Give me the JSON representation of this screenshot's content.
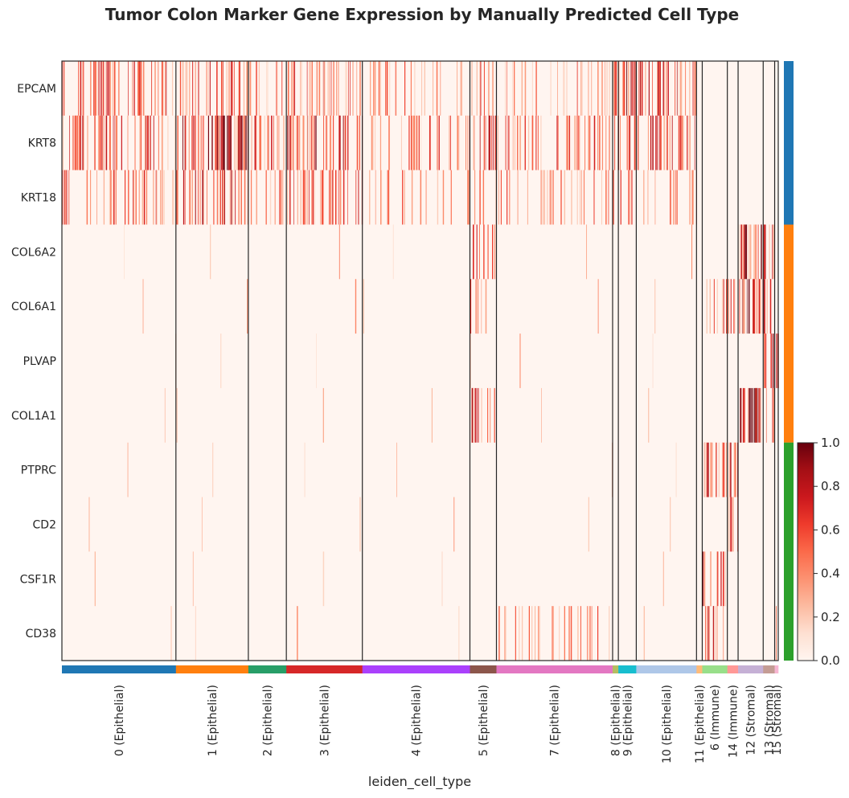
{
  "chart_data": {
    "type": "heatmap",
    "title": "Tumor Colon Marker Gene Expression by Manually Predicted Cell Type",
    "xlabel": "leiden_cell_type",
    "genes": [
      "EPCAM",
      "KRT8",
      "KRT18",
      "COL6A2",
      "COL6A1",
      "PLVAP",
      "COL1A1",
      "PTPRC",
      "CD2",
      "CSF1R",
      "CD38"
    ],
    "gene_groups": [
      {
        "genes": [
          "EPCAM",
          "KRT8",
          "KRT18"
        ],
        "color": "#1f77b4"
      },
      {
        "genes": [
          "COL6A2",
          "COL6A1",
          "PLVAP",
          "COL1A1"
        ],
        "color": "#ff7f0e"
      },
      {
        "genes": [
          "PTPRC",
          "CD2",
          "CSF1R",
          "CD38"
        ],
        "color": "#2ca02c"
      }
    ],
    "groups": [
      {
        "label": "0 (Epithelial)",
        "color": "#1f77b4",
        "width": 0.159
      },
      {
        "label": "1 (Epithelial)",
        "color": "#ff7f0e",
        "width": 0.101
      },
      {
        "label": "2 (Epithelial)",
        "color": "#279e68",
        "width": 0.053
      },
      {
        "label": "3 (Epithelial)",
        "color": "#d62728",
        "width": 0.106
      },
      {
        "label": "4 (Epithelial)",
        "color": "#aa40fc",
        "width": 0.15
      },
      {
        "label": "5 (Epithelial)",
        "color": "#8c564b",
        "width": 0.037
      },
      {
        "label": "7 (Epithelial)",
        "color": "#e377c2",
        "width": 0.162
      },
      {
        "label": "8 (Epithelial)",
        "color": "#b5bd61",
        "width": 0.008
      },
      {
        "label": "9 (Epithelial)",
        "color": "#17becf",
        "width": 0.025
      },
      {
        "label": "10 (Epithelial)",
        "color": "#aec7e8",
        "width": 0.084
      },
      {
        "label": "11 (Epithelial)",
        "color": "#ffbb78",
        "width": 0.008
      },
      {
        "label": "6 (Immune)",
        "color": "#98df8a",
        "width": 0.035
      },
      {
        "label": "14 (Immune)",
        "color": "#ff9896",
        "width": 0.015
      },
      {
        "label": "12 (Stromal)",
        "color": "#c5b0d5",
        "width": 0.035
      },
      {
        "label": "13 (Stromal)",
        "color": "#c49c94",
        "width": 0.016
      },
      {
        "label": "15 (Stromal)",
        "color": "#f7b6d2",
        "width": 0.005
      }
    ],
    "high_expression": [
      {
        "group": "0 (Epithelial)",
        "genes": {
          "EPCAM": 0.35,
          "KRT8": 0.45,
          "KRT18": 0.3
        }
      },
      {
        "group": "1 (Epithelial)",
        "genes": {
          "EPCAM": 0.35,
          "KRT8": 0.7,
          "KRT18": 0.45
        }
      },
      {
        "group": "2 (Epithelial)",
        "genes": {
          "EPCAM": 0.2,
          "KRT8": 0.35,
          "KRT18": 0.2
        }
      },
      {
        "group": "3 (Epithelial)",
        "genes": {
          "EPCAM": 0.4,
          "KRT8": 0.6,
          "KRT18": 0.4
        }
      },
      {
        "group": "4 (Epithelial)",
        "genes": {
          "EPCAM": 0.2,
          "KRT8": 0.25,
          "KRT18": 0.15
        }
      },
      {
        "group": "5 (Epithelial)",
        "genes": {
          "EPCAM": 0.35,
          "KRT8": 0.4,
          "KRT18": 0.2,
          "COL6A2": 0.35,
          "COL6A1": 0.25,
          "COL1A1": 0.45
        }
      },
      {
        "group": "7 (Epithelial)",
        "genes": {
          "EPCAM": 0.2,
          "KRT8": 0.3,
          "KRT18": 0.2,
          "CD38": 0.2
        }
      },
      {
        "group": "8 (Epithelial)",
        "genes": {
          "EPCAM": 0.7,
          "KRT8": 0.45,
          "KRT18": 0.3
        }
      },
      {
        "group": "9 (Epithelial)",
        "genes": {
          "EPCAM": 0.7,
          "KRT8": 0.45,
          "KRT18": 0.25
        }
      },
      {
        "group": "10 (Epithelial)",
        "genes": {
          "EPCAM": 0.45,
          "KRT8": 0.45,
          "KRT18": 0.2
        }
      },
      {
        "group": "6 (Immune)",
        "genes": {
          "PTPRC": 0.7,
          "COL6A1": 0.35,
          "CSF1R": 0.5,
          "CD38": 0.4
        }
      },
      {
        "group": "14 (Immune)",
        "genes": {
          "PTPRC": 0.7,
          "CD2": 0.5,
          "COL6A1": 0.3
        }
      },
      {
        "group": "12 (Stromal)",
        "genes": {
          "COL6A2": 0.75,
          "COL6A1": 0.75,
          "COL1A1": 0.85
        }
      },
      {
        "group": "13 (Stromal)",
        "genes": {
          "COL6A2": 0.5,
          "COL6A1": 0.5,
          "PLVAP": 0.6,
          "COL1A1": 0.3
        }
      },
      {
        "group": "15 (Stromal)",
        "genes": {
          "PLVAP": 0.7,
          "CD38": 0.3
        }
      }
    ],
    "colorbar": {
      "label_values": [
        "0.0",
        "0.2",
        "0.4",
        "0.6",
        "0.8",
        "1.0"
      ],
      "min": 0,
      "max": 1,
      "colormap": "Reds"
    }
  }
}
